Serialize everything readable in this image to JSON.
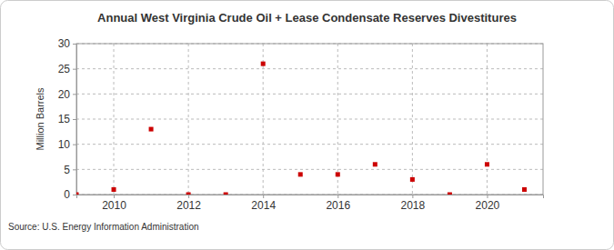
{
  "chart_data": {
    "type": "scatter",
    "title": "Annual West Virginia Crude Oil + Lease Condensate Reserves Divestitures",
    "y_label": "Million Barrels",
    "source": "Source: U.S. Energy Information Administration",
    "x": [
      2009,
      2010,
      2011,
      2012,
      2013,
      2014,
      2015,
      2016,
      2017,
      2018,
      2019,
      2020,
      2021
    ],
    "values": [
      0,
      1,
      13,
      0,
      0,
      26,
      4,
      4,
      6,
      3,
      0,
      6,
      1
    ],
    "color": "#cc0000",
    "marker": "square",
    "xlim": [
      2009,
      2021.5
    ],
    "xticks": [
      2010,
      2012,
      2014,
      2016,
      2018,
      2020
    ],
    "ylim": [
      0,
      30
    ],
    "yticks": [
      0,
      5,
      10,
      15,
      20,
      25,
      30
    ],
    "grid": true
  }
}
